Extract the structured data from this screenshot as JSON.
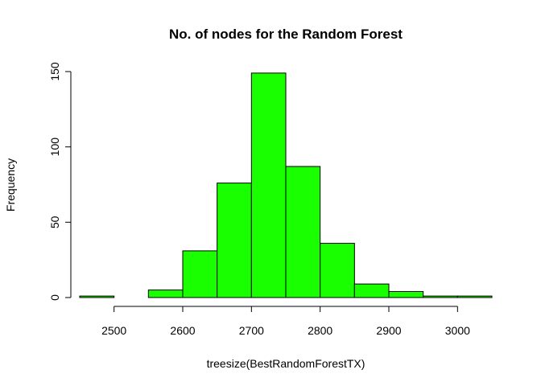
{
  "chart_data": {
    "type": "bar",
    "subtype": "histogram",
    "title": "No. of nodes for the Random Forest",
    "xlabel": "treesize(BestRandomForestTX)",
    "ylabel": "Frequency",
    "bin_edges": [
      2450,
      2500,
      2550,
      2600,
      2650,
      2700,
      2750,
      2800,
      2850,
      2900,
      2950,
      3000,
      3050
    ],
    "values": [
      1,
      0,
      5,
      31,
      76,
      149,
      87,
      36,
      9,
      4,
      1,
      1
    ],
    "xlim": [
      2450,
      3050
    ],
    "ylim": [
      0,
      150
    ],
    "x_ticks": [
      2500,
      2600,
      2700,
      2800,
      2900,
      3000
    ],
    "y_ticks": [
      0,
      50,
      100,
      150
    ],
    "bar_color": "#1aff00",
    "grid": false,
    "legend": "none"
  }
}
